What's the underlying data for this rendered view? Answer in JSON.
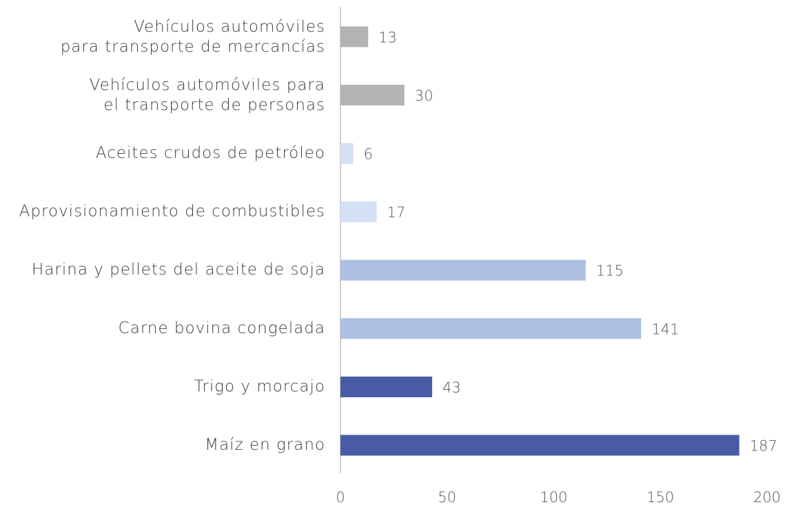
{
  "chart_data": {
    "type": "barh",
    "categories": [
      "Vehículos automóviles\npara transporte de mercancías",
      "Vehículos automóviles para\nel transporte de personas",
      "Aceites crudos de petróleo",
      "Aprovisionamiento de combustibles",
      "Harina y pellets del aceite de soja",
      "Carne bovina congelada",
      "Trigo y morcajo",
      "Maíz en grano"
    ],
    "values": [
      13,
      30,
      6,
      17,
      115,
      141,
      43,
      187
    ],
    "colors": [
      "#b3b3b3",
      "#b3b3b3",
      "#d4e0f4",
      "#d4e0f4",
      "#adc0e4",
      "#adc0e4",
      "#4a5ba6",
      "#4a5ba6"
    ],
    "xlim": [
      0,
      200
    ],
    "xticks": [
      0,
      50,
      100,
      150,
      200
    ],
    "grid": false
  }
}
